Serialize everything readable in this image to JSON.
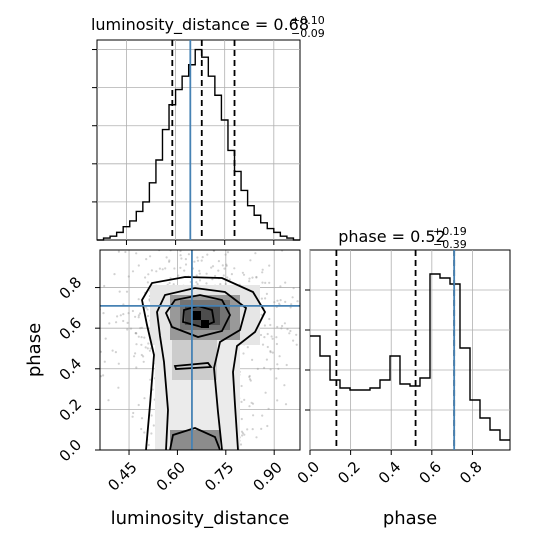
{
  "chart_data": [
    {
      "type": "histogram",
      "title": {
        "text": "luminosity_distance = 0.68",
        "plus": "+0.10",
        "minus": "−0.09"
      },
      "xlabel": "",
      "ylabel": "",
      "xlim": [
        0.36,
        0.98
      ],
      "bins": {
        "edges": [
          0.36,
          0.38,
          0.4,
          0.42,
          0.44,
          0.46,
          0.48,
          0.5,
          0.52,
          0.54,
          0.56,
          0.58,
          0.6,
          0.62,
          0.64,
          0.66,
          0.68,
          0.7,
          0.72,
          0.74,
          0.76,
          0.78,
          0.8,
          0.82,
          0.84,
          0.86,
          0.88,
          0.9,
          0.92,
          0.94,
          0.96,
          0.98
        ],
        "counts": [
          0.0,
          0.01,
          0.02,
          0.04,
          0.07,
          0.1,
          0.15,
          0.2,
          0.3,
          0.42,
          0.58,
          0.71,
          0.79,
          0.86,
          0.92,
          1.0,
          0.96,
          0.86,
          0.76,
          0.63,
          0.47,
          0.36,
          0.26,
          0.18,
          0.13,
          0.09,
          0.06,
          0.04,
          0.02,
          0.01,
          0.0
        ]
      },
      "quantiles": [
        0.59,
        0.68,
        0.78
      ],
      "truth": 0.645,
      "grid": true
    },
    {
      "type": "histogram",
      "title": {
        "text": "phase = 0.52",
        "plus": "+0.19",
        "minus": "−0.39"
      },
      "xlabel": "phase",
      "ylabel": "",
      "xlim": [
        0.0,
        0.985
      ],
      "xticks": [
        "0.0",
        "0.2",
        "0.4",
        "0.6",
        "0.8"
      ],
      "xtick_values": [
        0.0,
        0.2,
        0.4,
        0.6,
        0.8
      ],
      "bins": {
        "edges": [
          0.0,
          0.0492,
          0.0985,
          0.1477,
          0.197,
          0.2462,
          0.2955,
          0.3447,
          0.394,
          0.4432,
          0.4925,
          0.5417,
          0.591,
          0.6402,
          0.6895,
          0.7387,
          0.788,
          0.8372,
          0.8865,
          0.9357,
          0.985
        ],
        "counts": [
          0.57,
          0.47,
          0.35,
          0.31,
          0.3,
          0.3,
          0.31,
          0.35,
          0.47,
          0.33,
          0.32,
          0.36,
          0.88,
          0.86,
          0.83,
          0.51,
          0.25,
          0.16,
          0.1,
          0.05
        ]
      },
      "quantiles": [
        0.13,
        0.52,
        0.71
      ],
      "truth": 0.71,
      "grid": true
    },
    {
      "type": "2d-histogram-contour",
      "xlabel": "luminosity_distance",
      "ylabel": "phase",
      "xlim": [
        0.36,
        0.98
      ],
      "ylim": [
        0.0,
        0.985
      ],
      "xticks": [
        "0.45",
        "0.60",
        "0.75",
        "0.90"
      ],
      "xtick_values": [
        0.45,
        0.6,
        0.75,
        0.9
      ],
      "yticks": [
        "0.0",
        "0.2",
        "0.4",
        "0.6",
        "0.8"
      ],
      "ytick_values": [
        0.0,
        0.2,
        0.4,
        0.6,
        0.8
      ],
      "truth": [
        0.645,
        0.71
      ],
      "grid": true
    }
  ],
  "colors": {
    "truth": "#4682b4",
    "line": "#000000",
    "grid": "#b0b0b0"
  }
}
